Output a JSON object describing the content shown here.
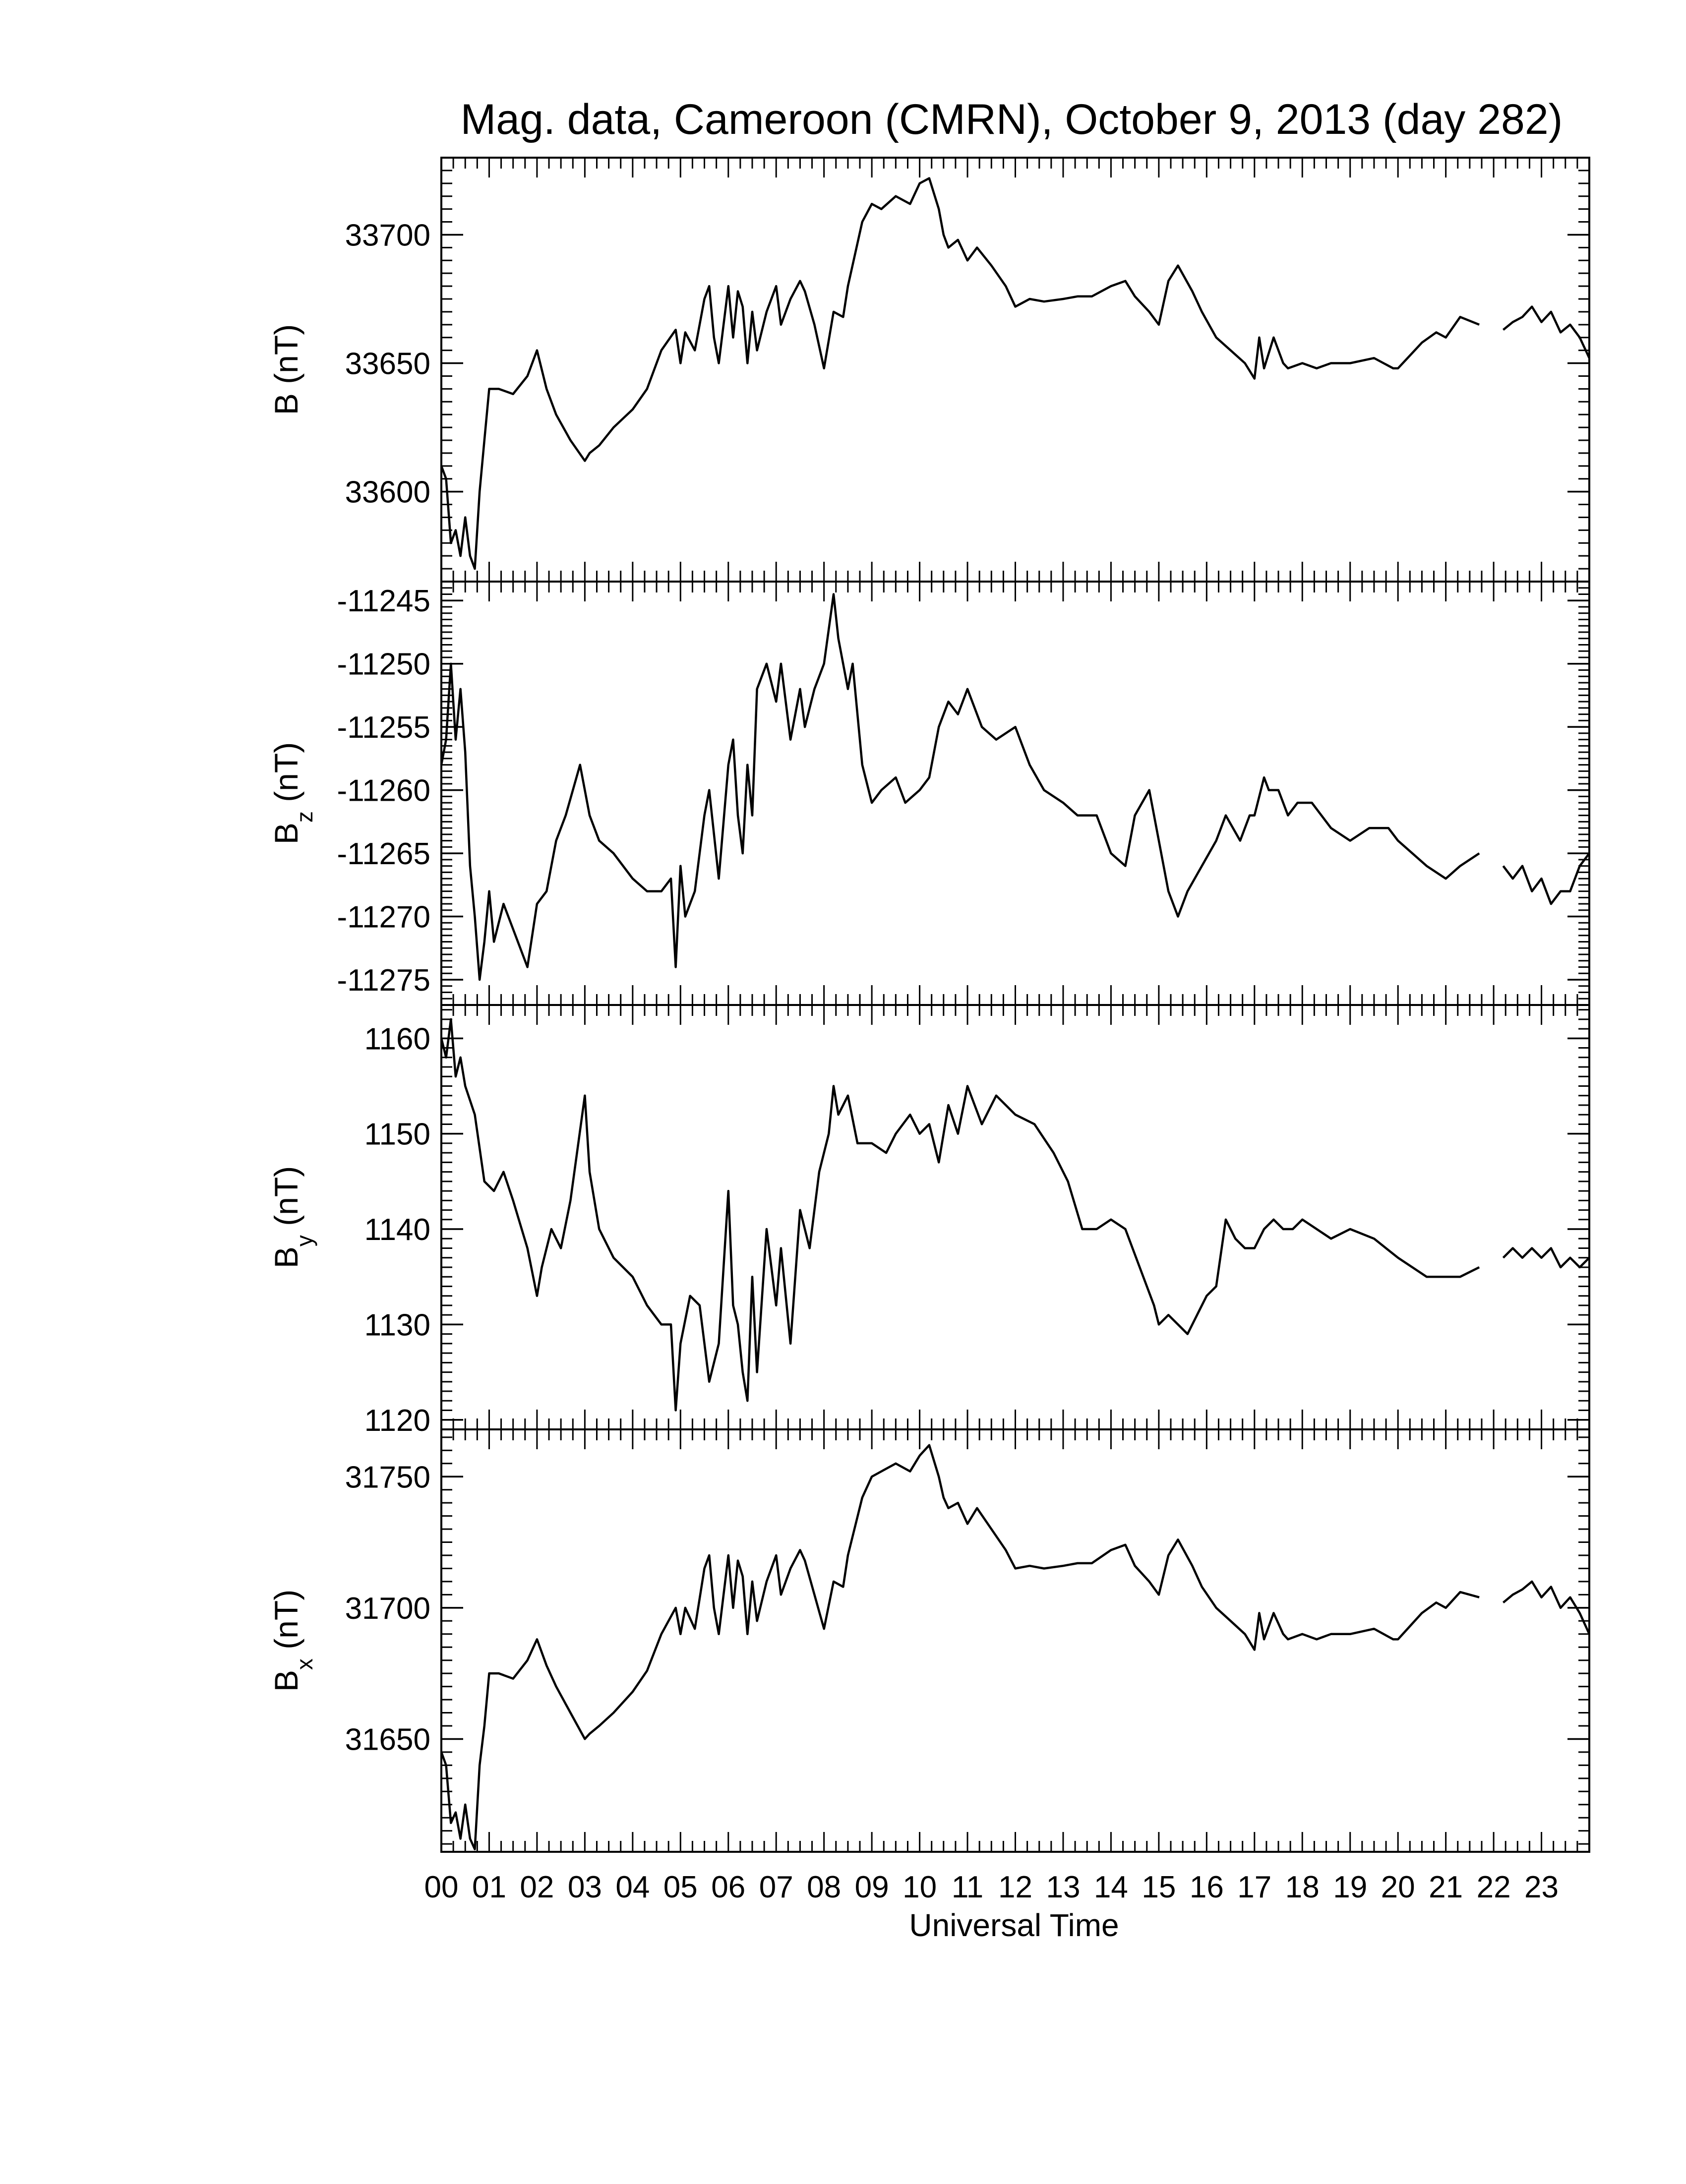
{
  "figure": {
    "title": "Mag. data, Cameroon (CMRN), October 9, 2013 (day 282)",
    "xlabel": "Universal Time",
    "xtick_labels": [
      "00",
      "01",
      "02",
      "03",
      "04",
      "05",
      "06",
      "07",
      "08",
      "09",
      "10",
      "11",
      "12",
      "13",
      "14",
      "15",
      "16",
      "17",
      "18",
      "19",
      "20",
      "21",
      "22",
      "23"
    ],
    "line_color": "#000000",
    "background": "#ffffff"
  },
  "chart_data": [
    {
      "type": "line",
      "panel": "B",
      "ylabel_main": "B",
      "ylabel_sub": "",
      "ylabel_unit": "(nT)",
      "yticks": [
        33600,
        33650,
        33700
      ],
      "ylim": [
        33565,
        33730
      ],
      "x_unit": "hours UT",
      "xlim": [
        0,
        24
      ],
      "gap": [
        21.7,
        22.2
      ],
      "x": [
        0,
        0.1,
        0.2,
        0.3,
        0.4,
        0.5,
        0.6,
        0.7,
        0.8,
        0.9,
        1.0,
        1.2,
        1.5,
        1.8,
        2.0,
        2.2,
        2.4,
        2.7,
        3.0,
        3.1,
        3.3,
        3.6,
        4.0,
        4.3,
        4.6,
        4.9,
        5.0,
        5.1,
        5.3,
        5.5,
        5.6,
        5.7,
        5.8,
        6.0,
        6.1,
        6.2,
        6.3,
        6.4,
        6.5,
        6.6,
        6.8,
        7.0,
        7.1,
        7.3,
        7.5,
        7.6,
        7.8,
        8.0,
        8.2,
        8.4,
        8.5,
        8.8,
        9.0,
        9.2,
        9.5,
        9.8,
        10.0,
        10.2,
        10.4,
        10.5,
        10.6,
        10.8,
        11.0,
        11.2,
        11.5,
        11.8,
        12.0,
        12.3,
        12.6,
        13.0,
        13.3,
        13.6,
        14.0,
        14.3,
        14.5,
        14.8,
        15.0,
        15.2,
        15.4,
        15.7,
        15.9,
        16.2,
        16.5,
        16.8,
        17.0,
        17.1,
        17.2,
        17.4,
        17.6,
        17.7,
        18.0,
        18.3,
        18.6,
        19.0,
        19.5,
        19.9,
        20.0,
        20.2,
        20.5,
        20.8,
        21.0,
        21.3,
        21.7,
        22.2,
        22.4,
        22.6,
        22.8,
        23.0,
        23.2,
        23.4,
        23.6,
        23.8,
        24.0
      ],
      "y": [
        33610,
        33605,
        33580,
        33585,
        33575,
        33590,
        33575,
        33570,
        33600,
        33620,
        33640,
        33640,
        33638,
        33645,
        33655,
        33640,
        33630,
        33620,
        33612,
        33615,
        33618,
        33625,
        33632,
        33640,
        33655,
        33663,
        33650,
        33662,
        33655,
        33675,
        33680,
        33660,
        33650,
        33680,
        33660,
        33678,
        33672,
        33650,
        33670,
        33655,
        33670,
        33680,
        33665,
        33675,
        33682,
        33678,
        33665,
        33648,
        33670,
        33668,
        33680,
        33705,
        33712,
        33710,
        33715,
        33712,
        33720,
        33722,
        33710,
        33700,
        33695,
        33698,
        33690,
        33695,
        33688,
        33680,
        33672,
        33675,
        33674,
        33675,
        33676,
        33676,
        33680,
        33682,
        33676,
        33670,
        33665,
        33682,
        33688,
        33678,
        33670,
        33660,
        33655,
        33650,
        33644,
        33660,
        33648,
        33660,
        33650,
        33648,
        33650,
        33648,
        33650,
        33650,
        33652,
        33648,
        33648,
        33652,
        33658,
        33662,
        33660,
        33668,
        33665,
        33663,
        33666,
        33668,
        33672,
        33666,
        33670,
        33662,
        33665,
        33660,
        33652
      ]
    },
    {
      "type": "line",
      "panel": "Bz",
      "ylabel_main": "B",
      "ylabel_sub": "z",
      "ylabel_unit": "(nT)",
      "yticks": [
        -11245,
        -11250,
        -11255,
        -11260,
        -11265,
        -11270,
        -11275
      ],
      "ylim": [
        -11277,
        -11243.5
      ],
      "x_unit": "hours UT",
      "xlim": [
        0,
        24
      ],
      "gap": [
        21.7,
        22.2
      ],
      "x": [
        0,
        0.1,
        0.2,
        0.3,
        0.4,
        0.5,
        0.6,
        0.7,
        0.8,
        0.9,
        1.0,
        1.1,
        1.3,
        1.5,
        1.8,
        2.0,
        2.2,
        2.4,
        2.6,
        2.9,
        3.1,
        3.3,
        3.6,
        4.0,
        4.3,
        4.6,
        4.8,
        4.9,
        5.0,
        5.1,
        5.3,
        5.5,
        5.6,
        5.8,
        6.0,
        6.1,
        6.2,
        6.3,
        6.4,
        6.5,
        6.6,
        6.8,
        7.0,
        7.1,
        7.3,
        7.5,
        7.6,
        7.8,
        8.0,
        8.2,
        8.3,
        8.5,
        8.6,
        8.8,
        9.0,
        9.2,
        9.5,
        9.7,
        10.0,
        10.2,
        10.4,
        10.6,
        10.8,
        11.0,
        11.3,
        11.6,
        12.0,
        12.3,
        12.6,
        13.0,
        13.3,
        13.7,
        14.0,
        14.3,
        14.5,
        14.8,
        15.0,
        15.2,
        15.4,
        15.6,
        15.9,
        16.2,
        16.4,
        16.7,
        16.9,
        17.0,
        17.2,
        17.3,
        17.5,
        17.7,
        17.9,
        18.2,
        18.6,
        19.0,
        19.4,
        19.8,
        20.0,
        20.3,
        20.6,
        21.0,
        21.3,
        21.7,
        22.2,
        22.4,
        22.6,
        22.8,
        23.0,
        23.2,
        23.4,
        23.6,
        23.8,
        24.0
      ],
      "y": [
        -11258,
        -11256,
        -11250,
        -11256,
        -11252,
        -11257,
        -11266,
        -11270,
        -11275,
        -11272,
        -11268,
        -11272,
        -11269,
        -11271,
        -11274,
        -11269,
        -11268,
        -11264,
        -11262,
        -11258,
        -11262,
        -11264,
        -11265,
        -11267,
        -11268,
        -11268,
        -11267,
        -11274,
        -11266,
        -11270,
        -11268,
        -11262,
        -11260,
        -11267,
        -11258,
        -11256,
        -11262,
        -11265,
        -11258,
        -11262,
        -11252,
        -11250,
        -11253,
        -11250,
        -11256,
        -11252,
        -11255,
        -11252,
        -11250,
        -11244.5,
        -11248,
        -11252,
        -11250,
        -11258,
        -11261,
        -11260,
        -11259,
        -11261,
        -11260,
        -11259,
        -11255,
        -11253,
        -11254,
        -11252,
        -11255,
        -11256,
        -11255,
        -11258,
        -11260,
        -11261,
        -11262,
        -11262,
        -11265,
        -11266,
        -11262,
        -11260,
        -11264,
        -11268,
        -11270,
        -11268,
        -11266,
        -11264,
        -11262,
        -11264,
        -11262,
        -11262,
        -11259,
        -11260,
        -11260,
        -11262,
        -11261,
        -11261,
        -11263,
        -11264,
        -11263,
        -11263,
        -11264,
        -11265,
        -11266,
        -11267,
        -11266,
        -11265,
        -11266,
        -11267,
        -11266,
        -11268,
        -11267,
        -11269,
        -11268,
        -11268,
        -11266,
        -11265
      ]
    },
    {
      "type": "line",
      "panel": "By",
      "ylabel_main": "B",
      "ylabel_sub": "y",
      "ylabel_unit": "(nT)",
      "yticks": [
        1120,
        1130,
        1140,
        1150,
        1160
      ],
      "ylim": [
        1119,
        1163.5
      ],
      "x_unit": "hours UT",
      "xlim": [
        0,
        24
      ],
      "gap": [
        21.7,
        22.2
      ],
      "x": [
        0,
        0.1,
        0.2,
        0.3,
        0.4,
        0.5,
        0.7,
        0.9,
        1.1,
        1.3,
        1.5,
        1.8,
        2.0,
        2.1,
        2.3,
        2.5,
        2.7,
        3.0,
        3.1,
        3.3,
        3.6,
        4.0,
        4.3,
        4.6,
        4.8,
        4.9,
        5.0,
        5.2,
        5.4,
        5.6,
        5.8,
        6.0,
        6.1,
        6.2,
        6.3,
        6.4,
        6.5,
        6.6,
        6.8,
        7.0,
        7.1,
        7.3,
        7.5,
        7.7,
        7.9,
        8.1,
        8.2,
        8.3,
        8.5,
        8.7,
        9.0,
        9.3,
        9.5,
        9.8,
        10.0,
        10.2,
        10.4,
        10.6,
        10.8,
        11.0,
        11.3,
        11.6,
        12.0,
        12.4,
        12.8,
        13.1,
        13.4,
        13.7,
        14.0,
        14.3,
        14.6,
        14.9,
        15.0,
        15.2,
        15.4,
        15.6,
        15.8,
        16.0,
        16.2,
        16.4,
        16.6,
        16.8,
        17.0,
        17.2,
        17.4,
        17.6,
        17.8,
        18.0,
        18.3,
        18.6,
        19.0,
        19.5,
        20.0,
        20.3,
        20.6,
        21.0,
        21.3,
        21.7,
        22.2,
        22.4,
        22.6,
        22.8,
        23.0,
        23.2,
        23.4,
        23.6,
        23.8,
        24.0
      ],
      "y": [
        1160,
        1158,
        1162,
        1156,
        1158,
        1155,
        1152,
        1145,
        1144,
        1146,
        1143,
        1138,
        1133,
        1136,
        1140,
        1138,
        1143,
        1154,
        1146,
        1140,
        1137,
        1135,
        1132,
        1130,
        1130,
        1121,
        1128,
        1133,
        1132,
        1124,
        1128,
        1144,
        1132,
        1130,
        1125,
        1122,
        1135,
        1125,
        1140,
        1132,
        1138,
        1128,
        1142,
        1138,
        1146,
        1150,
        1155,
        1152,
        1154,
        1149,
        1149,
        1148,
        1150,
        1152,
        1150,
        1151,
        1147,
        1153,
        1150,
        1155,
        1151,
        1154,
        1152,
        1151,
        1148,
        1145,
        1140,
        1140,
        1141,
        1140,
        1136,
        1132,
        1130,
        1131,
        1130,
        1129,
        1131,
        1133,
        1134,
        1141,
        1139,
        1138,
        1138,
        1140,
        1141,
        1140,
        1140,
        1141,
        1140,
        1139,
        1140,
        1139,
        1137,
        1136,
        1135,
        1135,
        1135,
        1136,
        1137,
        1138,
        1137,
        1138,
        1137,
        1138,
        1136,
        1137,
        1136,
        1137
      ]
    },
    {
      "type": "line",
      "panel": "Bx",
      "ylabel_main": "B",
      "ylabel_sub": "x",
      "ylabel_unit": "(nT)",
      "yticks": [
        31650,
        31700,
        31750
      ],
      "ylim": [
        31607,
        31768
      ],
      "x_unit": "hours UT",
      "xlim": [
        0,
        24
      ],
      "gap": [
        21.7,
        22.2
      ],
      "x": [
        0,
        0.1,
        0.2,
        0.3,
        0.4,
        0.5,
        0.6,
        0.7,
        0.8,
        0.9,
        1.0,
        1.2,
        1.5,
        1.8,
        2.0,
        2.2,
        2.4,
        2.7,
        3.0,
        3.1,
        3.3,
        3.6,
        4.0,
        4.3,
        4.6,
        4.9,
        5.0,
        5.1,
        5.3,
        5.5,
        5.6,
        5.7,
        5.8,
        6.0,
        6.1,
        6.2,
        6.3,
        6.4,
        6.5,
        6.6,
        6.8,
        7.0,
        7.1,
        7.3,
        7.5,
        7.6,
        7.8,
        8.0,
        8.2,
        8.4,
        8.5,
        8.8,
        9.0,
        9.2,
        9.5,
        9.8,
        10.0,
        10.2,
        10.4,
        10.5,
        10.6,
        10.8,
        11.0,
        11.2,
        11.5,
        11.8,
        12.0,
        12.3,
        12.6,
        13.0,
        13.3,
        13.6,
        14.0,
        14.3,
        14.5,
        14.8,
        15.0,
        15.2,
        15.4,
        15.7,
        15.9,
        16.2,
        16.5,
        16.8,
        17.0,
        17.1,
        17.2,
        17.4,
        17.6,
        17.7,
        18.0,
        18.3,
        18.6,
        19.0,
        19.5,
        19.9,
        20.0,
        20.2,
        20.5,
        20.8,
        21.0,
        21.3,
        21.7,
        22.2,
        22.4,
        22.6,
        22.8,
        23.0,
        23.2,
        23.4,
        23.6,
        23.8,
        24.0
      ],
      "y": [
        31645,
        31640,
        31618,
        31622,
        31612,
        31625,
        31612,
        31608,
        31640,
        31655,
        31675,
        31675,
        31673,
        31680,
        31688,
        31678,
        31670,
        31660,
        31650,
        31652,
        31655,
        31660,
        31668,
        31676,
        31690,
        31700,
        31690,
        31700,
        31692,
        31715,
        31720,
        31700,
        31690,
        31720,
        31700,
        31718,
        31712,
        31690,
        31710,
        31695,
        31710,
        31720,
        31705,
        31715,
        31722,
        31718,
        31705,
        31692,
        31710,
        31708,
        31720,
        31742,
        31750,
        31752,
        31755,
        31752,
        31758,
        31762,
        31750,
        31742,
        31738,
        31740,
        31732,
        31738,
        31730,
        31722,
        31715,
        31716,
        31715,
        31716,
        31717,
        31717,
        31722,
        31724,
        31716,
        31710,
        31705,
        31720,
        31726,
        31716,
        31708,
        31700,
        31695,
        31690,
        31684,
        31698,
        31688,
        31698,
        31690,
        31688,
        31690,
        31688,
        31690,
        31690,
        31692,
        31688,
        31688,
        31692,
        31698,
        31702,
        31700,
        31706,
        31704,
        31702,
        31705,
        31707,
        31710,
        31704,
        31708,
        31700,
        31704,
        31698,
        31690
      ]
    }
  ]
}
